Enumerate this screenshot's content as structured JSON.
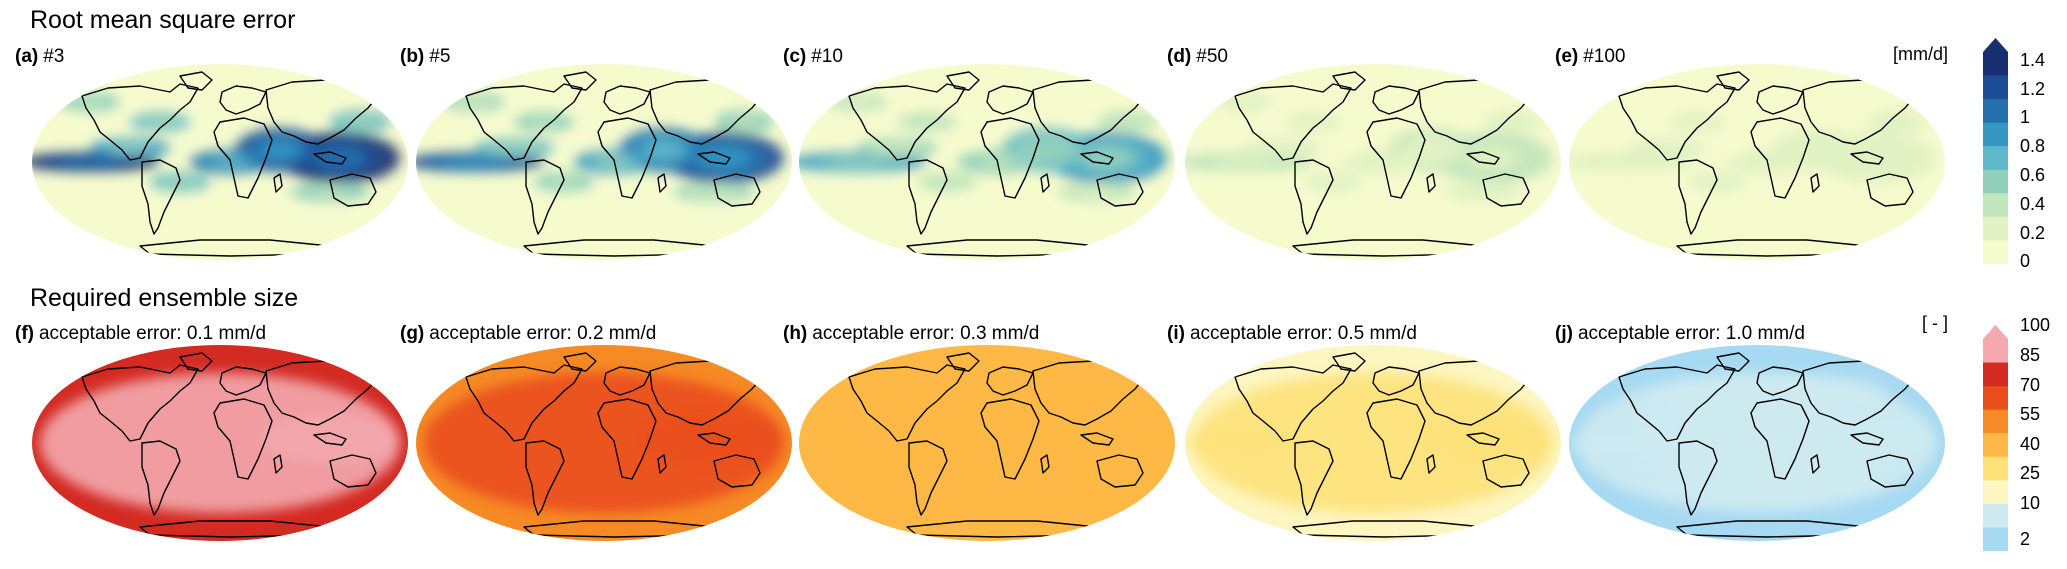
{
  "rows": [
    {
      "title": "Root mean square error",
      "unit": "[mm/d]",
      "colorbar": {
        "ticks": [
          "1.4",
          "1.2",
          "1",
          "0.8",
          "0.6",
          "0.4",
          "0.2",
          "0"
        ],
        "colors": [
          "#f6fbce",
          "#e1f2c3",
          "#c2e6bc",
          "#92d0bc",
          "#5fb8c7",
          "#3597c2",
          "#2370ad",
          "#1c4c95",
          "#172f6e"
        ]
      },
      "panels": [
        {
          "letter": "(a)",
          "label": "#3",
          "intensity": 1.0
        },
        {
          "letter": "(b)",
          "label": "#5",
          "intensity": 0.82
        },
        {
          "letter": "(c)",
          "label": "#10",
          "intensity": 0.6
        },
        {
          "letter": "(d)",
          "label": "#50",
          "intensity": 0.25
        },
        {
          "letter": "(e)",
          "label": "#100",
          "intensity": 0.15
        }
      ]
    },
    {
      "title": "Required ensemble size",
      "unit": "[ - ]",
      "colorbar": {
        "ticks": [
          "100",
          "85",
          "70",
          "55",
          "40",
          "25",
          "10",
          "2"
        ],
        "colors": [
          "#a6d9f2",
          "#cdeaf1",
          "#fdf6c1",
          "#fde27a",
          "#fdb845",
          "#f68a25",
          "#ea4d1c",
          "#d32a22",
          "#f3a9ae"
        ]
      },
      "panels": [
        {
          "letter": "(f)",
          "label": "acceptable error: 0.1 mm/d",
          "intensity": 1.0
        },
        {
          "letter": "(g)",
          "label": "acceptable error: 0.2 mm/d",
          "intensity": 0.75
        },
        {
          "letter": "(h)",
          "label": "acceptable error: 0.3 mm/d",
          "intensity": 0.55
        },
        {
          "letter": "(i)",
          "label": "acceptable error: 0.5 mm/d",
          "intensity": 0.35
        },
        {
          "letter": "(j)",
          "label": "acceptable error: 1.0 mm/d",
          "intensity": 0.18
        }
      ]
    }
  ]
}
